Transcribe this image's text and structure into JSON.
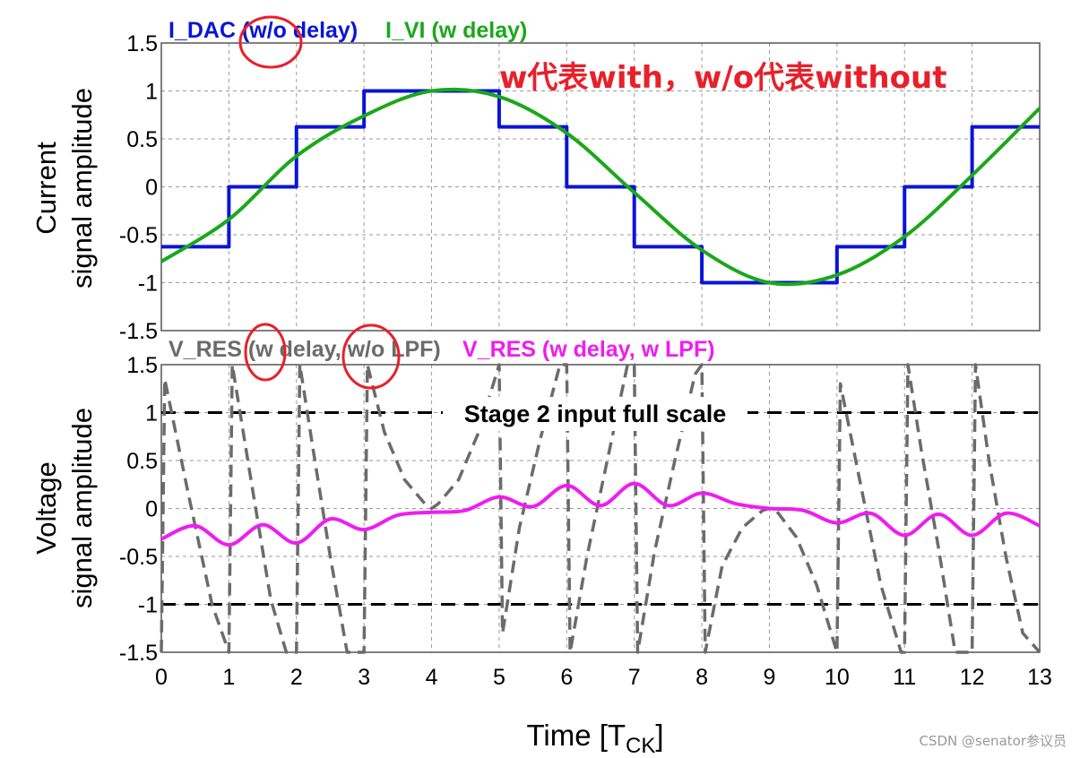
{
  "chart_data": [
    {
      "type": "line",
      "ylabel": [
        "Current",
        "signal amplitude"
      ],
      "xlim": [
        0,
        13
      ],
      "ylim": [
        -1.5,
        1.5
      ],
      "yticks": [
        "1.5",
        "1",
        "0.5",
        "0",
        "-0.5",
        "-1",
        "-1.5"
      ],
      "grid": true,
      "legend_placement": "top-left",
      "series": [
        {
          "name": "I_DAC (w/o delay)",
          "color": "#0a14d8",
          "style": "step",
          "x": [
            0,
            1,
            2,
            3,
            5,
            6,
            7,
            8,
            10,
            11,
            12,
            13
          ],
          "values": [
            -0.625,
            0,
            0.625,
            1,
            0.625,
            0,
            -0.625,
            -1,
            -0.625,
            0,
            0.625,
            0.625
          ]
        },
        {
          "name": "I_VI (w delay)",
          "color": "#1aa81a",
          "style": "smooth",
          "x": [
            0,
            1,
            2,
            3,
            4,
            5,
            6,
            7,
            8,
            9,
            10,
            11,
            12,
            13
          ],
          "values": [
            -0.78,
            -0.34,
            0.32,
            0.74,
            1.0,
            0.94,
            0.56,
            -0.06,
            -0.66,
            -1.0,
            -0.92,
            -0.52,
            0.12,
            0.82
          ]
        }
      ]
    },
    {
      "type": "line",
      "ylabel": [
        "Voltage",
        "signal amplitude"
      ],
      "xlabel": "Time [T",
      "xlabel_sub": "CK",
      "xlabel_close": "]",
      "xlim": [
        0,
        13
      ],
      "ylim": [
        -1.5,
        1.5
      ],
      "xticks": [
        "0",
        "1",
        "2",
        "3",
        "4",
        "5",
        "6",
        "7",
        "8",
        "9",
        "10",
        "11",
        "12",
        "13"
      ],
      "yticks": [
        "1.5",
        "1",
        "0.5",
        "0",
        "-0.5",
        "-1",
        "-1.5"
      ],
      "grid": true,
      "legend_placement": "top-left",
      "reference_lines": [
        1,
        -1
      ],
      "annotation": "Stage 2 input full scale",
      "series": [
        {
          "name": "V_RES (w delay, w/o LPF)",
          "color": "#6b6b6b",
          "style": "dashed",
          "x": [
            0,
            0.05,
            0.4,
            0.75,
            1.0,
            1.05,
            1.35,
            1.62,
            1.85,
            2.0,
            2.05,
            2.25,
            2.5,
            2.75,
            3.0,
            3.05,
            3.3,
            3.6,
            3.9,
            4.0,
            4.1,
            4.4,
            4.7,
            5.0,
            5.05,
            5.3,
            5.6,
            5.9,
            6.0,
            6.05,
            6.3,
            6.6,
            6.9,
            7.0,
            7.05,
            7.3,
            7.6,
            7.9,
            8.0,
            8.05,
            8.3,
            8.6,
            8.9,
            9.0,
            9.1,
            9.4,
            9.7,
            10.0,
            10.05,
            10.35,
            10.65,
            10.95,
            11.0,
            11.05,
            11.25,
            11.5,
            11.75,
            12.0,
            12.05,
            12.25,
            12.5,
            12.75,
            13.0
          ],
          "values": [
            -1.5,
            1.35,
            0.15,
            -1.0,
            -1.5,
            1.5,
            0.2,
            -0.95,
            -1.5,
            -1.5,
            1.5,
            0.6,
            -0.5,
            -1.5,
            -1.5,
            1.5,
            0.8,
            0.3,
            0.05,
            0.0,
            0.05,
            0.3,
            0.8,
            1.5,
            -1.3,
            -0.2,
            0.7,
            1.5,
            1.5,
            -1.5,
            -0.5,
            0.5,
            1.5,
            1.5,
            -1.5,
            -0.45,
            0.5,
            1.4,
            1.5,
            -1.5,
            -0.6,
            -0.2,
            -0.02,
            0.0,
            -0.02,
            -0.3,
            -0.8,
            -1.5,
            1.3,
            0.25,
            -0.8,
            -1.5,
            -1.5,
            1.5,
            0.6,
            -0.4,
            -1.5,
            -1.5,
            1.5,
            0.5,
            -0.5,
            -1.3,
            -1.5
          ]
        },
        {
          "name": "V_RES (w delay, w LPF)",
          "color": "#f01cf0",
          "style": "scalloped",
          "x": [
            0,
            0.5,
            1,
            1.5,
            2,
            2.5,
            3,
            3.5,
            4,
            4.5,
            5,
            5.5,
            6,
            6.5,
            7,
            7.5,
            8,
            8.5,
            9,
            9.5,
            10,
            10.5,
            11,
            11.5,
            12,
            12.5,
            13
          ],
          "values": [
            -0.32,
            -0.18,
            -0.38,
            -0.17,
            -0.36,
            -0.11,
            -0.22,
            -0.07,
            -0.04,
            -0.02,
            0.12,
            0.02,
            0.24,
            0.03,
            0.26,
            0.03,
            0.16,
            0.05,
            0.0,
            -0.02,
            -0.15,
            -0.05,
            -0.28,
            -0.06,
            -0.28,
            -0.05,
            -0.18
          ]
        }
      ]
    }
  ],
  "annotations": {
    "note": "w代表with，w/o代表without",
    "watermark": "CSDN @senator参议员"
  }
}
